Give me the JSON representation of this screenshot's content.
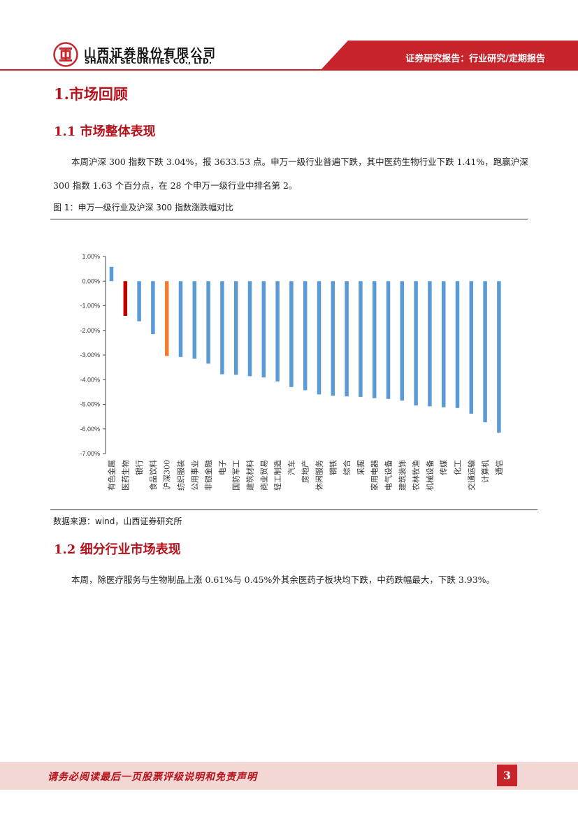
{
  "header": {
    "company_cn": "山西证券股份有限公司",
    "company_en": "SHANXI SECURITIES CO., LTD.",
    "report_tag": "证券研究报告：行业研究/定期报告",
    "brand_color": "#c8242c"
  },
  "section1": {
    "title": "1.市场回顾"
  },
  "section1_1": {
    "title": "1.1 市场整体表现",
    "paragraph": "本周沪深 300 指数下跌 3.04%，报 3633.53 点。申万一级行业普遍下跌，其中医药生物行业下跌 1.41%，跑赢沪深 300 指数 1.63 个百分点，在 28 个申万一级行业中排名第 2。"
  },
  "figure1": {
    "caption": "图 1：申万一级行业及沪深 300 指数涨跌幅对比",
    "source": "数据来源：wind，山西证券研究所"
  },
  "chart_data": {
    "type": "bar",
    "title": "",
    "xlabel": "",
    "ylabel": "",
    "ylim": [
      -7,
      1
    ],
    "yticks": [
      "1.00%",
      "0.00%",
      "-1.00%",
      "-2.00%",
      "-3.00%",
      "-4.00%",
      "-5.00%",
      "-6.00%",
      "-7.00%"
    ],
    "grid": false,
    "legend": "none",
    "categories": [
      "有色金属",
      "医药生物",
      "银行",
      "食品饮料",
      "沪深300",
      "纺织服装",
      "公用事业",
      "非银金融",
      "电子",
      "国防军工",
      "建筑材料",
      "商业贸易",
      "轻工制造",
      "汽车",
      "房地产",
      "休闲服务",
      "钢铁",
      "综合",
      "采掘",
      "家用电器",
      "电气设备",
      "建筑装饰",
      "农林牧渔",
      "机械设备",
      "传媒",
      "化工",
      "交通运输",
      "计算机",
      "通信"
    ],
    "values": [
      0.58,
      -1.41,
      -1.63,
      -2.15,
      -3.04,
      -3.08,
      -3.15,
      -3.35,
      -3.78,
      -3.8,
      -3.86,
      -3.91,
      -4.07,
      -4.3,
      -4.43,
      -4.6,
      -4.65,
      -4.68,
      -4.7,
      -4.75,
      -4.78,
      -4.85,
      -5.05,
      -5.08,
      -5.12,
      -5.15,
      -5.38,
      -5.73,
      -6.15
    ],
    "colors": {
      "default": "#5b9bd5",
      "医药生物": "#c00000",
      "沪深300": "#ed7d31"
    }
  },
  "section1_2": {
    "title": "1.2 细分行业市场表现",
    "paragraph": "本周，除医疗服务与生物制品上涨 0.61%与 0.45%外其余医药子板块均下跌，中药跌幅最大，下跌 3.93%。"
  },
  "footer": {
    "disclaimer": "请务必阅读最后一页股票评级说明和免责声明",
    "page_number": "3"
  }
}
